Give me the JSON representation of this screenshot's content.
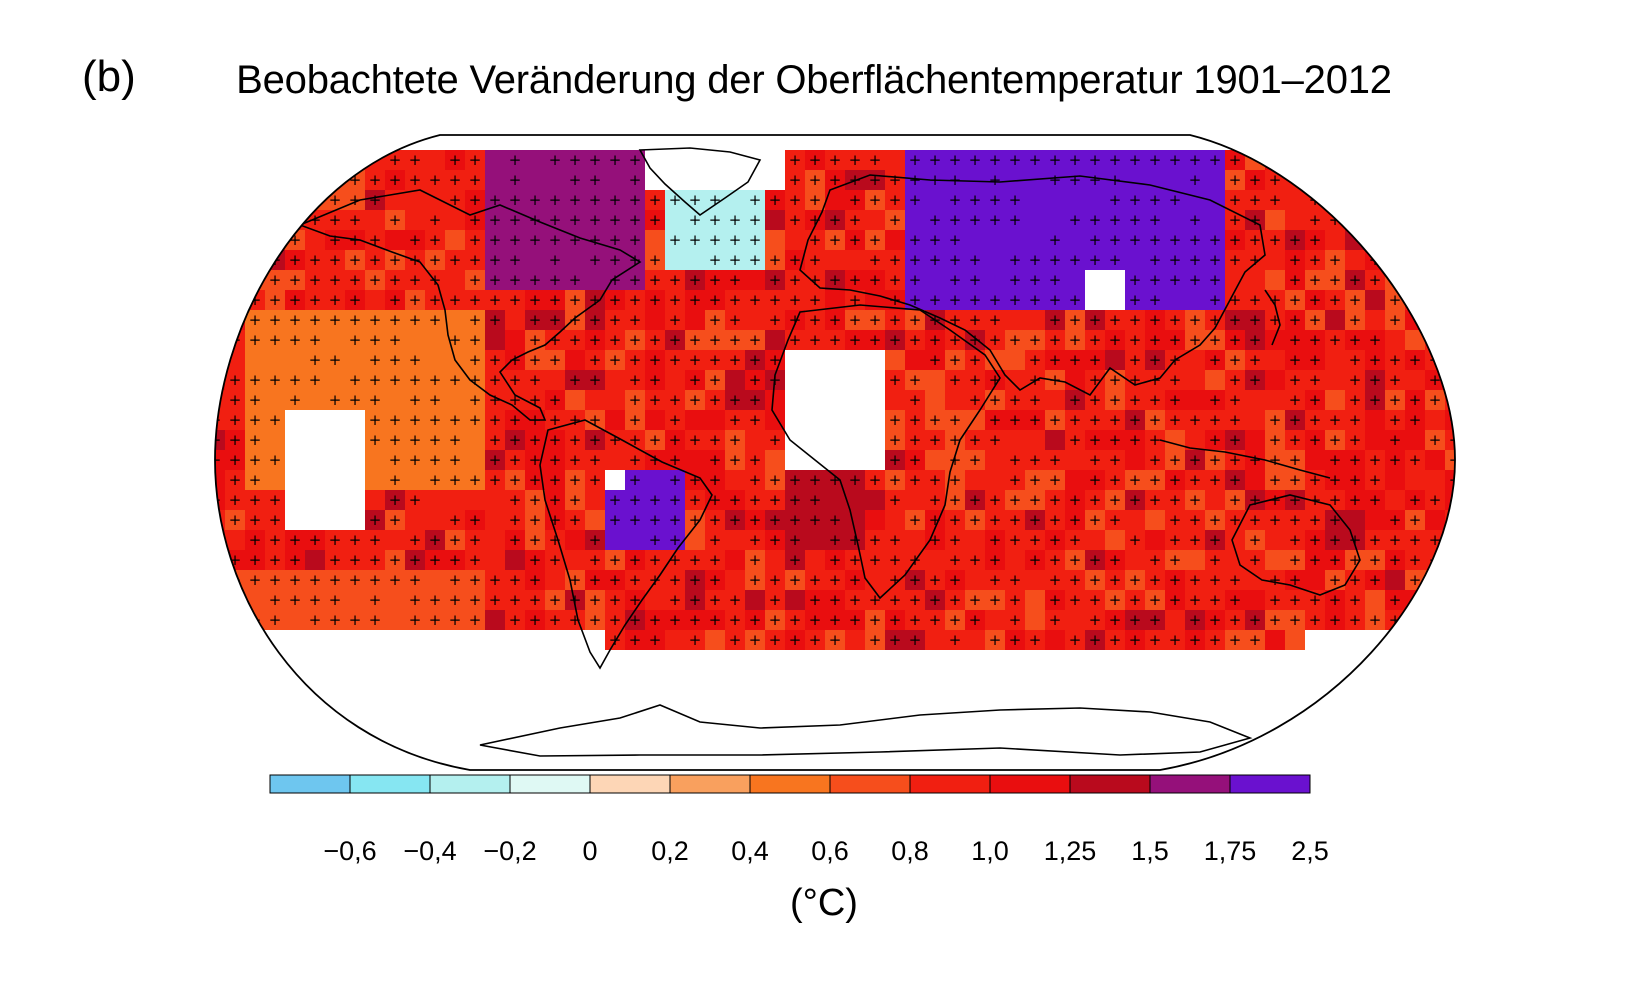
{
  "panel_label": "(b)",
  "title": "Beobachtete Veränderung der Oberflächentemperatur 1901–2012",
  "colorbar": {
    "unit": "(°C)",
    "tick_labels": [
      "−0,6",
      "−0,4",
      "−0,2",
      "0",
      "0,2",
      "0,4",
      "0,6",
      "0,8",
      "1,0",
      "1,25",
      "1,5",
      "1,75",
      "2,5"
    ],
    "colors": [
      "#6ec6ef",
      "#86e6f2",
      "#b4f0ef",
      "#dff9f4",
      "#fdd6b6",
      "#f9a05e",
      "#f8751f",
      "#f64e1c",
      "#f11f11",
      "#e90e0f",
      "#b90a1d",
      "#95107a",
      "#6a11cf"
    ]
  },
  "map": {
    "projection": "Robinson",
    "markers": "plus signs mark grid cells with significant trends",
    "no_data_color": "#ffffff"
  }
}
